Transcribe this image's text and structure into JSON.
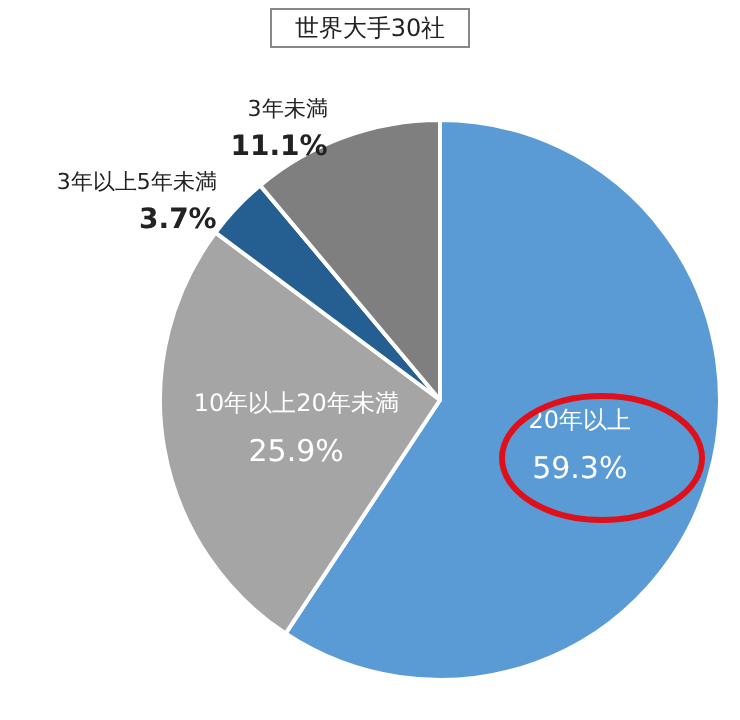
{
  "chart_data": {
    "type": "pie",
    "title": "世界大手30社",
    "categories": [
      "20年以上",
      "10年以上20年未満",
      "3年以上5年未満",
      "3年未満"
    ],
    "values": [
      59.3,
      25.9,
      3.7,
      11.1
    ],
    "value_labels": [
      "59.3%",
      "25.9%",
      "3.7%",
      "11.1%"
    ],
    "colors": [
      "#5b9bd5",
      "#a5a5a5",
      "#255e91",
      "#7f7f7f"
    ]
  }
}
